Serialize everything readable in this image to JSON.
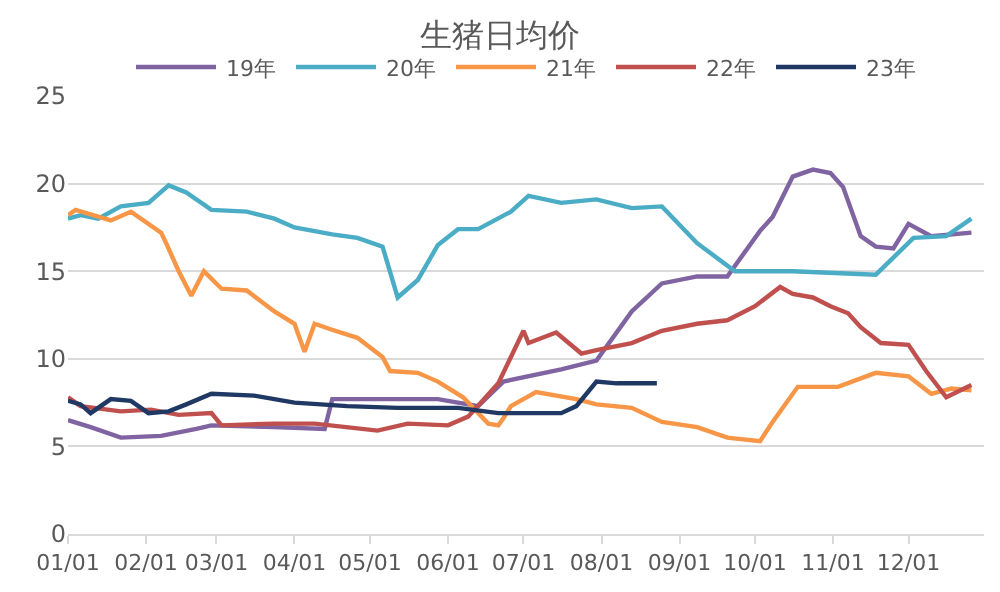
{
  "chart_data": {
    "type": "line",
    "title": "生猪日均价",
    "xlim": [
      "--01-01",
      "--12-31"
    ],
    "xticks": [
      {
        "value": "--01-01",
        "label": "01/01"
      },
      {
        "value": "--02-01",
        "label": "02/01"
      },
      {
        "value": "--03-01",
        "label": "03/01"
      },
      {
        "value": "--04-01",
        "label": "04/01"
      },
      {
        "value": "--05-01",
        "label": "05/01"
      },
      {
        "value": "--06-01",
        "label": "06/01"
      },
      {
        "value": "--07-01",
        "label": "07/01"
      },
      {
        "value": "--08-01",
        "label": "08/01"
      },
      {
        "value": "--09-01",
        "label": "09/01"
      },
      {
        "value": "--10-01",
        "label": "10/01"
      },
      {
        "value": "--11-01",
        "label": "11/01"
      },
      {
        "value": "--12-01",
        "label": "12/01"
      }
    ],
    "ylim": [
      0,
      25
    ],
    "yticks": [
      0,
      5,
      10,
      15,
      20,
      25
    ],
    "grid": "y",
    "legend": "top",
    "marker": "none",
    "line_style": "solid",
    "series": [
      {
        "name": "19年",
        "color": "#8064a2",
        "x": [
          "--01-01",
          "--01-10",
          "--01-22",
          "--02-07",
          "--02-21",
          "--02-27",
          "--03-24",
          "--04-13",
          "--04-16",
          "--05-28",
          "--06-13",
          "--06-23",
          "--07-16",
          "--07-30",
          "--08-13",
          "--08-25",
          "--09-08",
          "--09-20",
          "--10-03",
          "--10-08",
          "--10-16",
          "--10-24",
          "--10-31",
          "--11-05",
          "--11-12",
          "--11-18",
          "--11-25",
          "--12-01",
          "--12-10",
          "--12-26"
        ],
        "values": [
          6.5,
          6.1,
          5.5,
          5.6,
          6.0,
          6.2,
          6.1,
          6.0,
          7.7,
          7.7,
          7.3,
          8.7,
          9.4,
          9.9,
          12.7,
          14.3,
          14.7,
          14.7,
          17.3,
          18.1,
          20.4,
          20.8,
          20.6,
          19.8,
          17.0,
          16.4,
          16.3,
          17.7,
          17.0,
          17.2
        ]
      },
      {
        "name": "20年",
        "color": "#4bacc6",
        "x": [
          "--01-01",
          "--01-06",
          "--01-13",
          "--01-22",
          "--02-02",
          "--02-10",
          "--02-17",
          "--02-27",
          "--03-13",
          "--03-24",
          "--04-01",
          "--04-16",
          "--04-26",
          "--05-06",
          "--05-12",
          "--05-20",
          "--05-28",
          "--06-05",
          "--06-13",
          "--06-26",
          "--07-03",
          "--07-16",
          "--07-30",
          "--08-13",
          "--08-25",
          "--09-08",
          "--09-23",
          "--10-16",
          "--11-18",
          "--12-03",
          "--12-16",
          "--12-26"
        ],
        "values": [
          18.0,
          18.2,
          18.0,
          18.7,
          18.9,
          19.9,
          19.5,
          18.5,
          18.4,
          18.0,
          17.5,
          17.1,
          16.9,
          16.4,
          13.5,
          14.5,
          16.5,
          17.4,
          17.4,
          18.4,
          19.3,
          18.9,
          19.1,
          18.6,
          18.7,
          16.6,
          15.0,
          15.0,
          14.8,
          16.9,
          17.0,
          18.0
        ]
      },
      {
        "name": "21年",
        "color": "#f79646",
        "x": [
          "--01-01",
          "--01-04",
          "--01-18",
          "--01-26",
          "--02-07",
          "--02-09",
          "--02-14",
          "--02-19",
          "--02-24",
          "--03-03",
          "--03-13",
          "--03-24",
          "--04-01",
          "--04-05",
          "--04-09",
          "--04-15",
          "--04-26",
          "--05-06",
          "--05-09",
          "--05-20",
          "--05-28",
          "--06-07",
          "--06-17",
          "--06-21",
          "--06-23",
          "--06-26",
          "--07-06",
          "--07-22",
          "--07-30",
          "--08-13",
          "--08-25",
          "--09-08",
          "--09-20",
          "--10-03",
          "--10-08",
          "--10-18",
          "--11-03",
          "--11-18",
          "--12-01",
          "--12-10",
          "--12-18",
          "--12-26"
        ],
        "values": [
          18.2,
          18.5,
          17.9,
          18.4,
          17.2,
          16.6,
          15.0,
          13.6,
          15.0,
          14.0,
          13.9,
          12.7,
          12.0,
          10.4,
          12.0,
          11.7,
          11.2,
          10.1,
          9.3,
          9.2,
          8.7,
          7.8,
          6.3,
          6.2,
          6.6,
          7.3,
          8.1,
          7.7,
          7.4,
          7.2,
          6.4,
          6.1,
          5.5,
          5.3,
          6.4,
          8.4,
          8.4,
          9.2,
          9.0,
          8.0,
          8.3,
          8.2
        ]
      },
      {
        "name": "22年",
        "color": "#c0504d",
        "x": [
          "--01-01",
          "--01-06",
          "--01-22",
          "--02-03",
          "--02-14",
          "--02-27",
          "--03-03",
          "--03-24",
          "--04-09",
          "--05-04",
          "--05-16",
          "--06-01",
          "--06-09",
          "--06-21",
          "--07-01",
          "--07-03",
          "--07-14",
          "--07-24",
          "--07-30",
          "--08-13",
          "--08-25",
          "--09-08",
          "--09-20",
          "--10-01",
          "--10-11",
          "--10-16",
          "--10-24",
          "--10-31",
          "--11-07",
          "--11-12",
          "--11-20",
          "--12-01",
          "--12-08",
          "--12-16",
          "--12-26"
        ],
        "values": [
          7.8,
          7.3,
          7.0,
          7.1,
          6.8,
          6.9,
          6.2,
          6.3,
          6.3,
          5.9,
          6.3,
          6.2,
          6.7,
          8.6,
          11.6,
          10.9,
          11.5,
          10.3,
          10.5,
          10.9,
          11.6,
          12.0,
          12.2,
          13.0,
          14.1,
          13.7,
          13.5,
          13.0,
          12.6,
          11.8,
          10.9,
          10.8,
          9.3,
          7.8,
          8.5
        ]
      },
      {
        "name": "23年",
        "color": "#1f3864",
        "x": [
          "--01-01",
          "--01-06",
          "--01-10",
          "--01-18",
          "--01-26",
          "--02-02",
          "--02-10",
          "--02-17",
          "--02-27",
          "--03-16",
          "--04-01",
          "--04-22",
          "--05-12",
          "--06-05",
          "--06-21",
          "--07-06",
          "--07-16",
          "--07-22",
          "--07-30",
          "--08-07",
          "--08-23"
        ],
        "values": [
          7.6,
          7.4,
          6.9,
          7.7,
          7.6,
          6.9,
          7.0,
          7.4,
          8.0,
          7.9,
          7.5,
          7.3,
          7.2,
          7.2,
          6.9,
          6.9,
          6.9,
          7.3,
          8.7,
          8.6,
          8.6
        ]
      }
    ]
  }
}
